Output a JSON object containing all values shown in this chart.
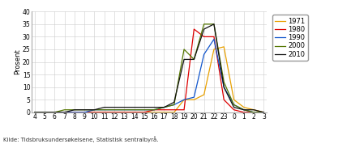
{
  "x_labels": [
    "4",
    "5",
    "6",
    "7",
    "8",
    "9",
    "10",
    "11",
    "12",
    "13",
    "14",
    "15",
    "16",
    "17",
    "18",
    "19",
    "20",
    "21",
    "22",
    "23",
    "0",
    "1",
    "2",
    "3"
  ],
  "ylabel": "Prosent",
  "source": "Kilde: Tidsbruksundersøkelsene, Statistisk sentralbyrå.",
  "ylim": [
    0,
    40
  ],
  "yticks": [
    0,
    5,
    10,
    15,
    20,
    25,
    30,
    35,
    40
  ],
  "series": {
    "1971": {
      "color": "#e8a000",
      "values": [
        0,
        0,
        0,
        0,
        0,
        0,
        0,
        0,
        0,
        0,
        0,
        0,
        0,
        0,
        0,
        5,
        5,
        7,
        25,
        26,
        5,
        2,
        1,
        0
      ]
    },
    "1980": {
      "color": "#dd0000",
      "values": [
        0,
        0,
        0,
        0,
        0,
        0,
        0,
        0,
        0,
        0,
        0,
        0,
        1,
        1,
        1,
        1,
        33,
        30,
        30,
        5,
        1,
        0,
        0,
        0
      ]
    },
    "1990": {
      "color": "#1155cc",
      "values": [
        0,
        0,
        0,
        0,
        0,
        0,
        1,
        1,
        1,
        1,
        1,
        1,
        1,
        2,
        3,
        5,
        6,
        23,
        29,
        10,
        3,
        1,
        0,
        0
      ]
    },
    "2000": {
      "color": "#557700",
      "values": [
        0,
        0,
        0,
        1,
        1,
        1,
        1,
        1,
        1,
        1,
        1,
        1,
        1,
        2,
        3,
        25,
        21,
        35,
        35,
        12,
        3,
        1,
        0,
        0
      ]
    },
    "2010": {
      "color": "#111111",
      "values": [
        0,
        0,
        0,
        0,
        1,
        1,
        1,
        2,
        2,
        2,
        2,
        2,
        2,
        2,
        4,
        21,
        21,
        33,
        35,
        10,
        2,
        1,
        1,
        0
      ]
    }
  },
  "legend_order": [
    "1971",
    "1980",
    "1990",
    "2000",
    "2010"
  ],
  "background_color": "#ffffff",
  "grid_color": "#cccccc"
}
